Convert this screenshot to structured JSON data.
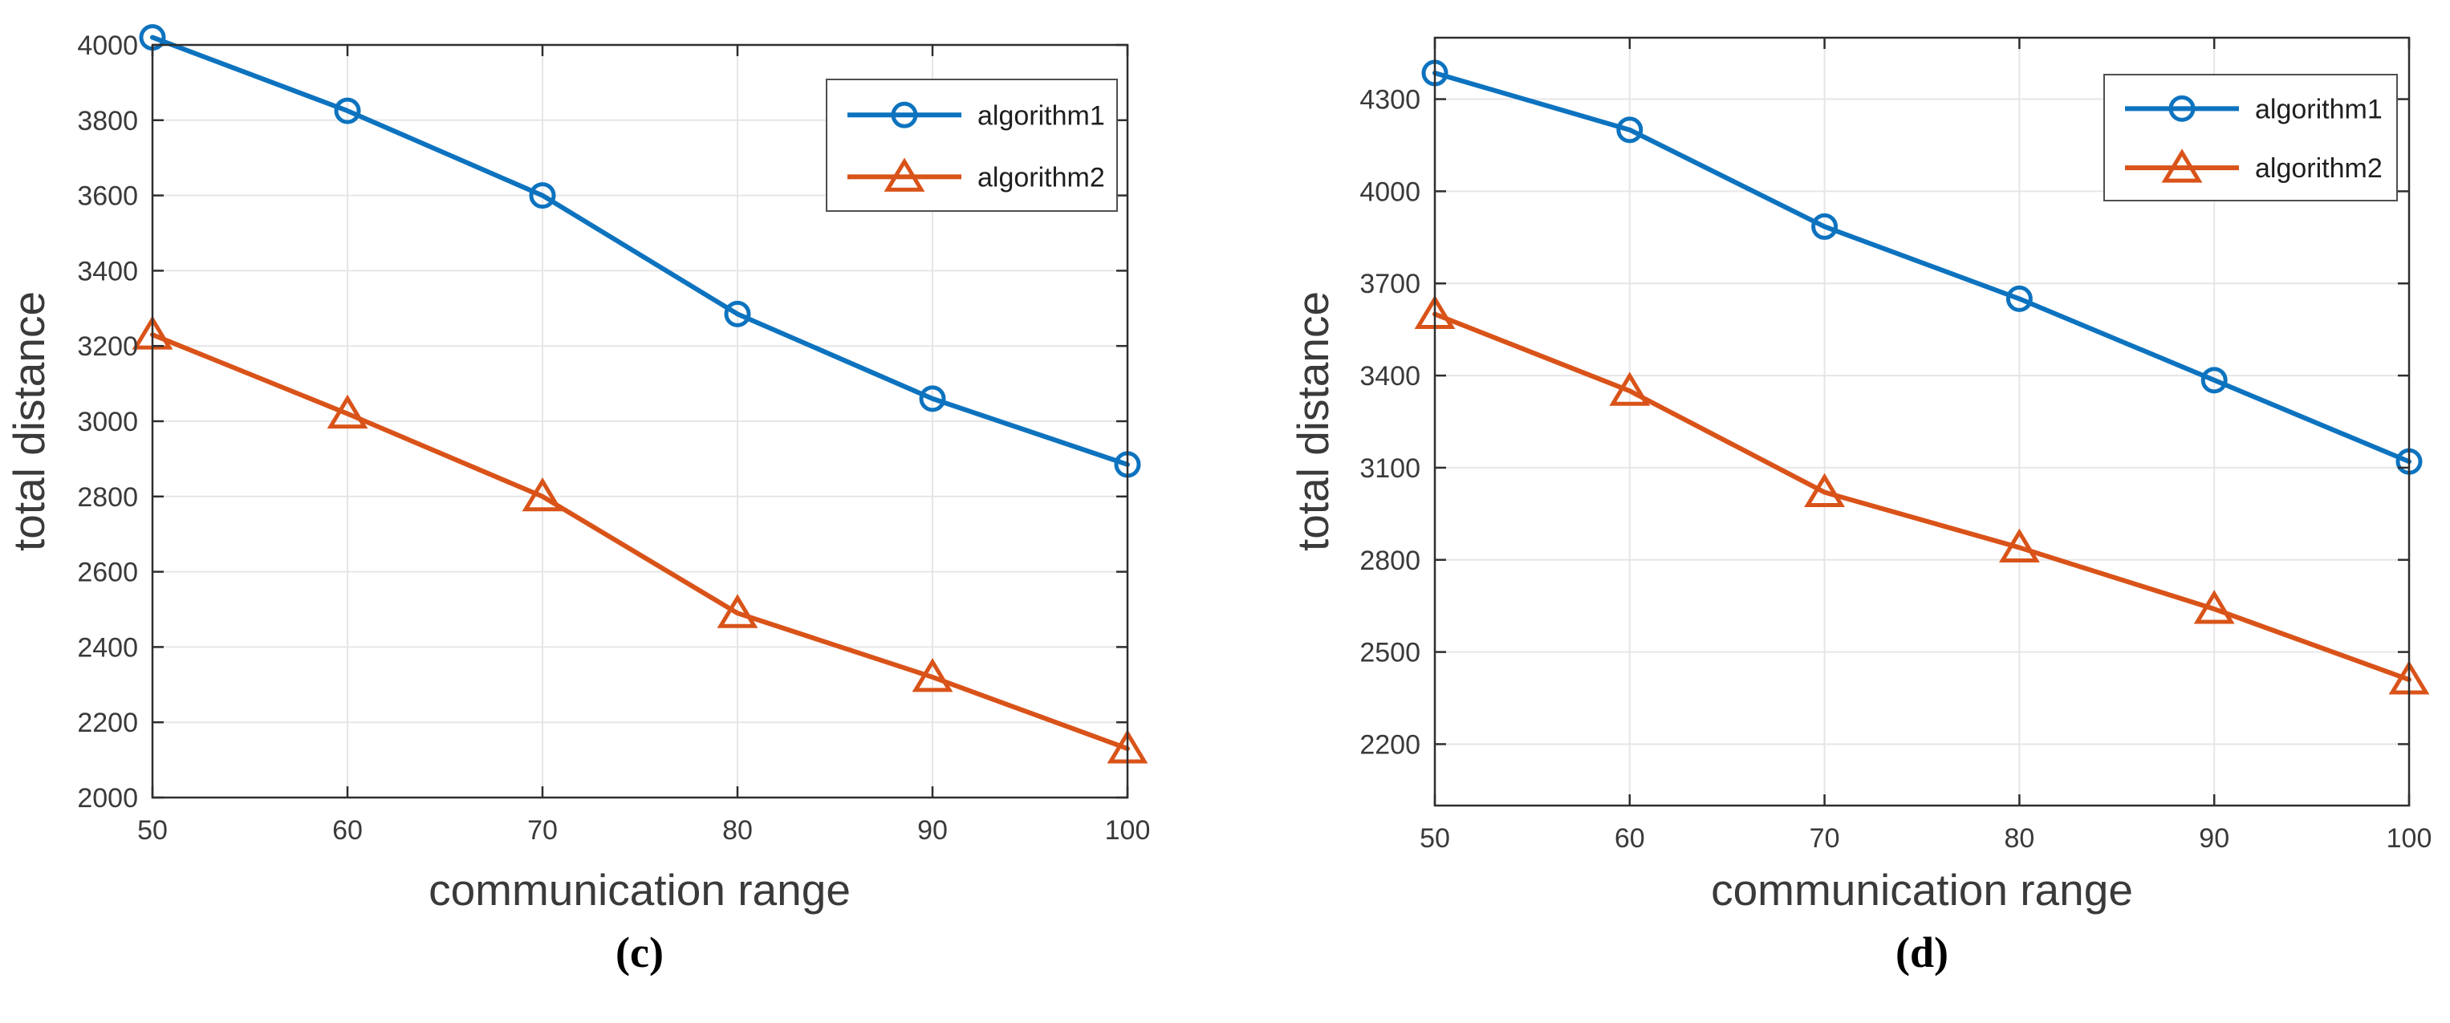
{
  "figure": {
    "background": "#ffffff",
    "grid_color": "#e6e6e6",
    "spine_color": "#2e2e2e",
    "text_color": "#3a3a3a",
    "legend_border_color": "#4f4f4f"
  },
  "chart_data": [
    {
      "panel": "c",
      "type": "line",
      "caption": "(c)",
      "xlabel": "communication range",
      "ylabel": "total distance",
      "x": [
        50,
        60,
        70,
        80,
        90,
        100
      ],
      "xticks": [
        50,
        60,
        70,
        80,
        90,
        100
      ],
      "yticks": [
        2000,
        2200,
        2400,
        2600,
        2800,
        3000,
        3200,
        3400,
        3600,
        3800,
        4000
      ],
      "xlim": [
        50,
        100
      ],
      "ylim": [
        2000,
        4000
      ],
      "grid": true,
      "legend_position": "top-right",
      "series": [
        {
          "name": "algorithm1",
          "marker": "circle",
          "color": "#0d73bf",
          "values": [
            4020,
            3825,
            3600,
            3285,
            3060,
            2885
          ]
        },
        {
          "name": "algorithm2",
          "marker": "triangle",
          "color": "#d95319",
          "values": [
            3230,
            3020,
            2800,
            2490,
            2320,
            2130
          ]
        }
      ]
    },
    {
      "panel": "d",
      "type": "line",
      "caption": "(d)",
      "xlabel": "communication range",
      "ylabel": "total distance",
      "x": [
        50,
        60,
        70,
        80,
        90,
        100
      ],
      "xticks": [
        50,
        60,
        70,
        80,
        90,
        100
      ],
      "yticks": [
        2200,
        2500,
        2800,
        3100,
        3400,
        3700,
        4000,
        4300
      ],
      "xlim": [
        50,
        100
      ],
      "ylim": [
        2000,
        4500
      ],
      "grid": true,
      "legend_position": "top-right",
      "series": [
        {
          "name": "algorithm1",
          "marker": "circle",
          "color": "#0d73bf",
          "values": [
            4385,
            4200,
            3885,
            3650,
            3385,
            3120
          ]
        },
        {
          "name": "algorithm2",
          "marker": "triangle",
          "color": "#d95319",
          "values": [
            3600,
            3350,
            3020,
            2840,
            2640,
            2410
          ]
        }
      ]
    }
  ]
}
